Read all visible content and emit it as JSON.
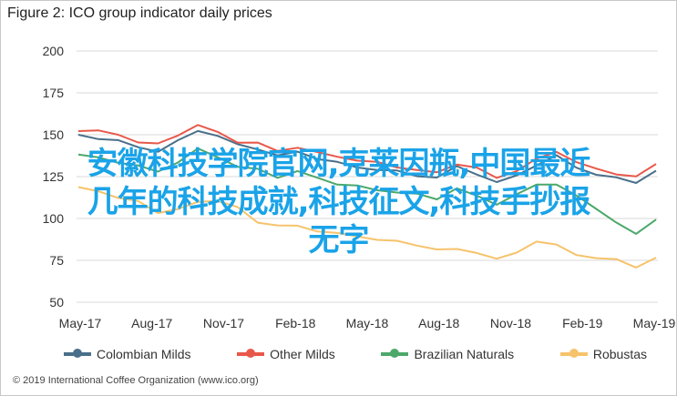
{
  "figure_title": "Figure 2: ICO group indicator daily prices",
  "overlay_text": {
    "line1": "安徽科技学院官网,克莱因瓶,中国最近",
    "line2": "几年的科技成就,科技征文,科技手抄报",
    "line3": "无字"
  },
  "source": "© 2019 International Coffee Organization (www.ico.org)",
  "chart_data": {
    "type": "line",
    "title": "Figure 2: ICO group indicator daily prices",
    "xlabel": "",
    "ylabel": "",
    "x_ticks": [
      "May-17",
      "Aug-17",
      "Nov-17",
      "Feb-18",
      "May-18",
      "Aug-18",
      "Nov-18",
      "Feb-19",
      "May-19"
    ],
    "y_ticks": [
      50,
      75,
      100,
      125,
      150,
      175,
      200
    ],
    "ylim": [
      50,
      200
    ],
    "grid": true,
    "legend_position": "bottom",
    "series": [
      {
        "name": "Colombian Milds",
        "color": "#4a6f8a",
        "values": [
          150,
          148,
          146,
          143,
          140,
          146,
          153,
          149,
          144,
          142,
          137,
          140,
          136,
          133,
          131,
          129,
          128,
          126,
          124,
          131,
          127,
          121,
          126,
          132,
          137,
          131,
          126,
          124,
          122,
          128
        ]
      },
      {
        "name": "Other Milds",
        "color": "#e8584a",
        "values": [
          153,
          152,
          150,
          146,
          144,
          150,
          156,
          151,
          146,
          145,
          140,
          143,
          139,
          137,
          135,
          133,
          131,
          129,
          127,
          133,
          130,
          124,
          129,
          135,
          140,
          134,
          129,
          127,
          125,
          132
        ]
      },
      {
        "name": "Brazilian Naturals",
        "color": "#4ca86a",
        "values": [
          138,
          136,
          134,
          131,
          128,
          134,
          141,
          137,
          131,
          129,
          125,
          128,
          124,
          121,
          119,
          117,
          116,
          114,
          112,
          118,
          113,
          109,
          114,
          120,
          121,
          113,
          106,
          98,
          90,
          100
        ]
      },
      {
        "name": "Robustas",
        "color": "#f6c36b",
        "values": [
          118,
          117,
          112,
          110,
          104,
          105,
          110,
          111,
          106,
          98,
          96,
          95,
          93,
          91,
          89,
          88,
          86,
          84,
          82,
          81,
          80,
          76,
          79,
          87,
          84,
          78,
          77,
          75,
          71,
          77
        ]
      }
    ]
  }
}
